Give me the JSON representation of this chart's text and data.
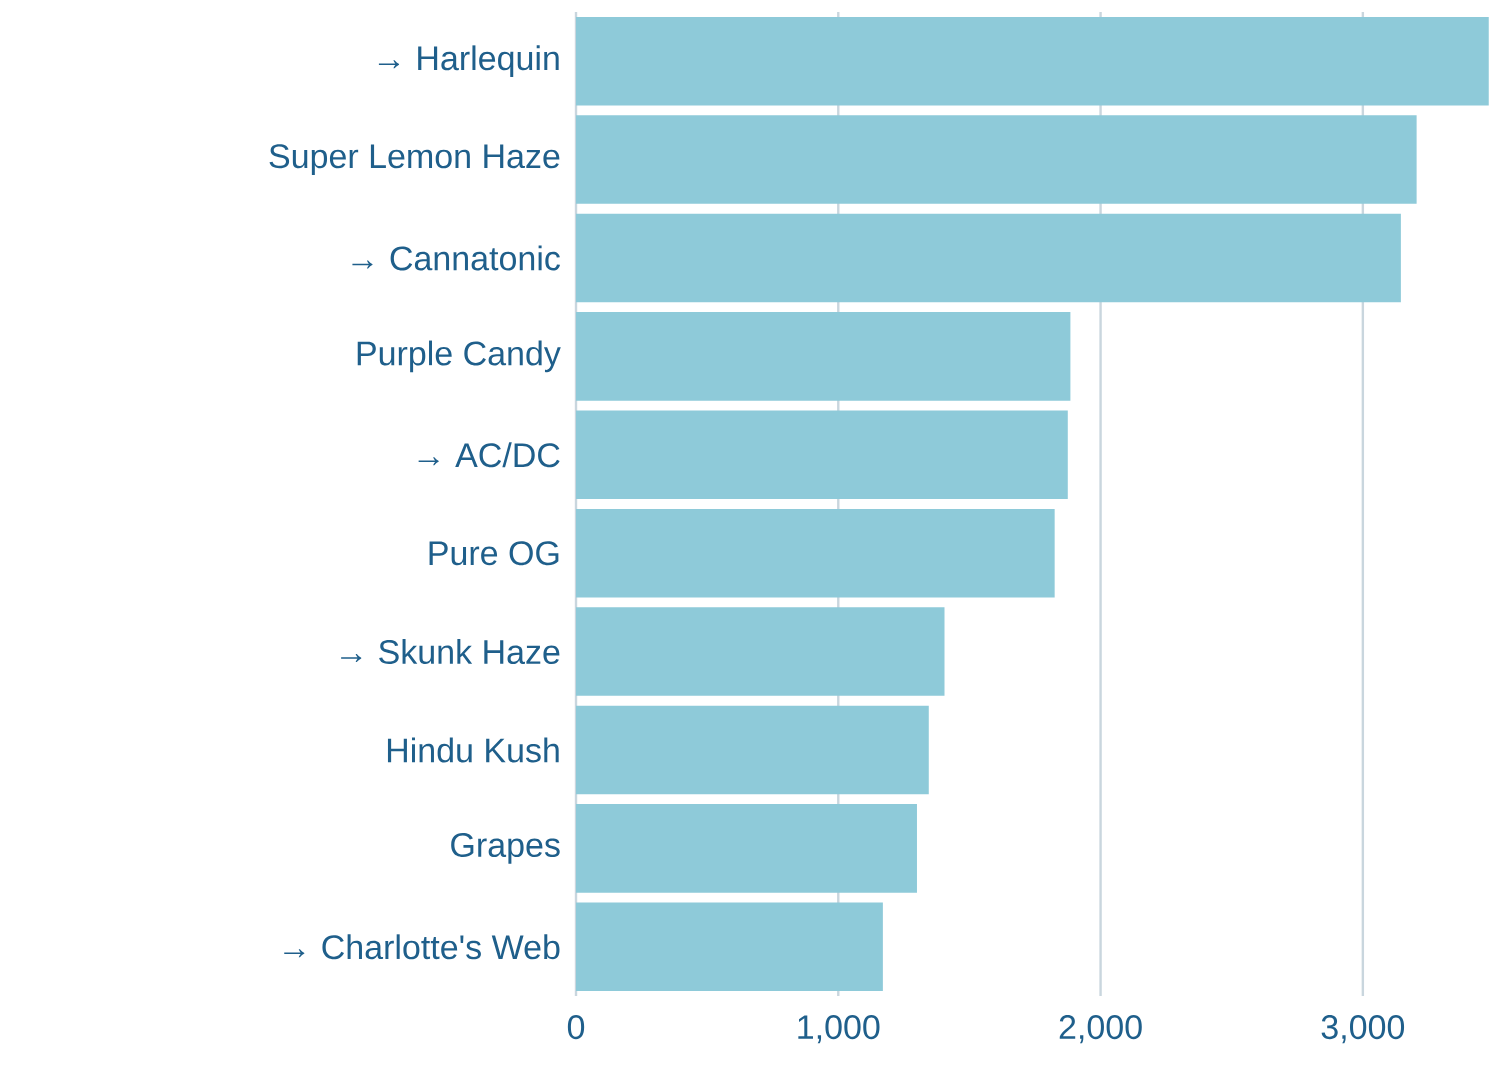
{
  "chart_data": {
    "type": "bar",
    "orientation": "horizontal",
    "categories": [
      "→ Harlequin",
      "Super Lemon Haze",
      "→ Cannatonic",
      "Purple Candy",
      "→ AC/DC",
      "Pure OG",
      "→ Skunk Haze",
      "Hindu Kush",
      "Grapes",
      "→ Charlotte's Web"
    ],
    "values": [
      3480,
      3205,
      3145,
      1885,
      1875,
      1825,
      1405,
      1345,
      1300,
      1170
    ],
    "color": "#8ecad9",
    "xlim": [
      0,
      3500
    ],
    "xticks": [
      0,
      {
        "value": 1000,
        "label": "1,000"
      },
      {
        "value": 2000,
        "label": "2,000"
      },
      {
        "value": 3000,
        "label": "3,000"
      }
    ],
    "grid": "x"
  }
}
